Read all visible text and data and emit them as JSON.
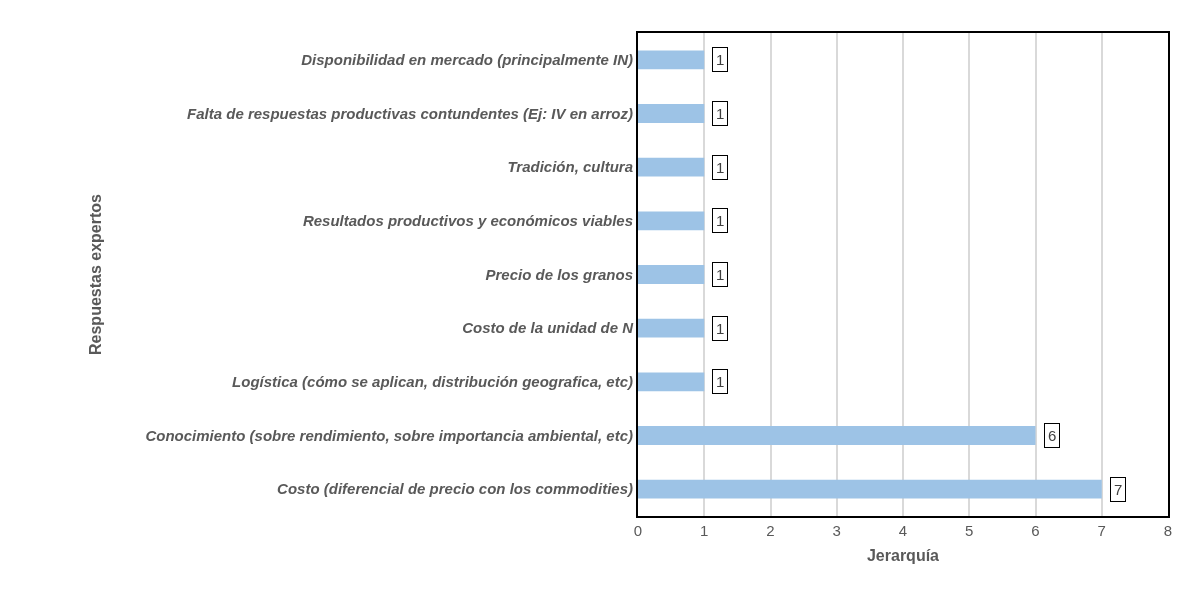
{
  "chart_data": {
    "type": "bar",
    "orientation": "horizontal",
    "xlabel": "Jerarquía",
    "ylabel": "Respuestas expertos",
    "categories": [
      "Disponibilidad en mercado (principalmente IN)",
      "Falta de respuestas productivas contundentes (Ej: IV en arroz)",
      "Tradición, cultura",
      "Resultados productivos y económicos viables",
      "Precio de los granos",
      "Costo de la unidad de N",
      "Logística (cómo se aplican, distribución geografica, etc)",
      "Conocimiento (sobre rendimiento, sobre importancia ambiental, etc)",
      "Costo (diferencial de precio con los commodities)"
    ],
    "values": [
      1,
      1,
      1,
      1,
      1,
      1,
      1,
      6,
      7
    ],
    "color": "#9dc3e6",
    "xlim": [
      0,
      8
    ],
    "xticks": [
      0,
      1,
      2,
      3,
      4,
      5,
      6,
      7,
      8
    ],
    "grid": "x",
    "data_labels": true
  }
}
